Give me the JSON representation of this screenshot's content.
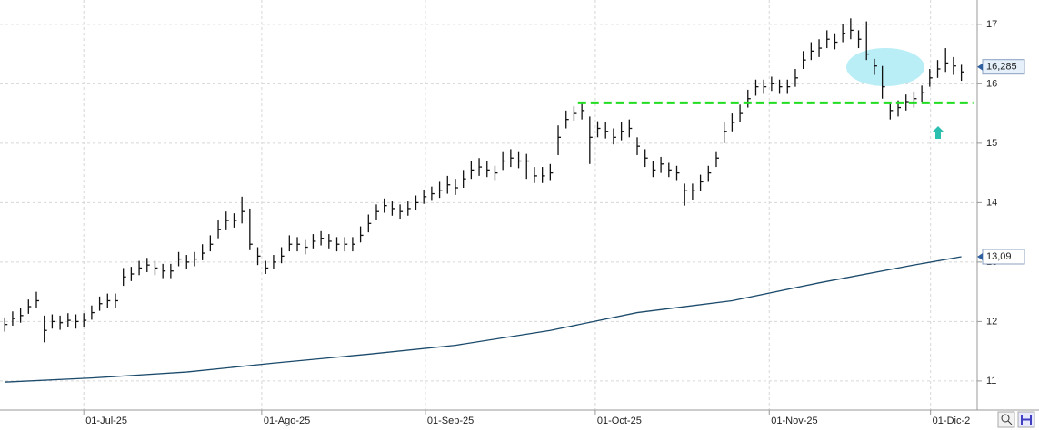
{
  "chart_data": {
    "type": "ohlc",
    "xlim": [
      -0.6,
      123
    ],
    "ylim": [
      10.51,
      17.41
    ],
    "yticks": [
      11,
      12,
      13,
      14,
      15,
      16,
      17
    ],
    "xticks": [
      {
        "value": 10,
        "label": "01-Jul-25"
      },
      {
        "value": 32.5,
        "label": "01-Ago-25"
      },
      {
        "value": 53.2,
        "label": "01-Sep-25"
      },
      {
        "value": 74.7,
        "label": "01-Oct-25"
      },
      {
        "value": 96.7,
        "label": "01-Nov-25"
      },
      {
        "value": 117.1,
        "label": "01-Dic-2"
      }
    ],
    "grid": true,
    "color": "#111111",
    "high": [
      12.07,
      12.17,
      12.22,
      12.37,
      12.5,
      12.1,
      12.12,
      12.1,
      12.14,
      12.12,
      12.14,
      12.27,
      12.42,
      12.47,
      12.47,
      12.9,
      12.92,
      13.02,
      13.07,
      13.02,
      12.97,
      12.97,
      13.17,
      13.12,
      13.17,
      13.3,
      13.45,
      13.7,
      13.85,
      13.82,
      14.1,
      13.9,
      13.25,
      13.02,
      13.12,
      13.25,
      13.45,
      13.42,
      13.37,
      13.47,
      13.52,
      13.47,
      13.42,
      13.42,
      13.42,
      13.6,
      13.8,
      13.97,
      14.07,
      14.02,
      13.97,
      14.02,
      14.12,
      14.22,
      14.27,
      14.35,
      14.45,
      14.4,
      14.55,
      14.7,
      14.75,
      14.7,
      14.62,
      14.85,
      14.9,
      14.85,
      14.82,
      14.6,
      14.6,
      14.65,
      15.3,
      15.55,
      15.62,
      15.7,
      15.45,
      15.37,
      15.35,
      15.25,
      15.35,
      15.4,
      15.1,
      14.9,
      14.7,
      14.77,
      14.67,
      14.62,
      14.32,
      14.32,
      14.47,
      14.62,
      14.85,
      15.35,
      15.5,
      15.65,
      15.9,
      16.07,
      16.07,
      16.12,
      16.07,
      16.07,
      16.25,
      16.55,
      16.7,
      16.75,
      16.9,
      16.85,
      17.0,
      17.1,
      16.9,
      17.05,
      16.42,
      16.3,
      15.7,
      15.72,
      15.82,
      15.87,
      15.97,
      16.25,
      16.4,
      16.6,
      16.45,
      16.32
    ],
    "low": [
      11.83,
      11.93,
      11.98,
      12.13,
      12.23,
      11.65,
      11.88,
      11.86,
      11.9,
      11.88,
      11.9,
      12.03,
      12.18,
      12.23,
      12.23,
      12.6,
      12.68,
      12.78,
      12.83,
      12.78,
      12.73,
      12.73,
      12.93,
      12.88,
      12.93,
      13.03,
      13.18,
      13.4,
      13.55,
      13.58,
      13.65,
      13.2,
      12.95,
      12.8,
      12.88,
      12.98,
      13.18,
      13.18,
      13.13,
      13.23,
      13.28,
      13.23,
      13.18,
      13.18,
      13.18,
      13.33,
      13.5,
      13.7,
      13.83,
      13.78,
      13.73,
      13.78,
      13.88,
      13.98,
      14.03,
      14.08,
      14.15,
      14.13,
      14.25,
      14.4,
      14.45,
      14.43,
      14.38,
      14.55,
      14.6,
      14.58,
      14.4,
      14.33,
      14.33,
      14.38,
      14.8,
      15.25,
      15.38,
      15.4,
      14.65,
      15.1,
      15.08,
      14.98,
      15.05,
      15.1,
      14.8,
      14.6,
      14.43,
      14.5,
      14.43,
      14.38,
      13.95,
      14.05,
      14.2,
      14.35,
      14.6,
      15.0,
      15.2,
      15.35,
      15.6,
      15.8,
      15.83,
      15.88,
      15.83,
      15.83,
      15.95,
      16.25,
      16.4,
      16.45,
      16.6,
      16.58,
      16.7,
      16.75,
      16.6,
      16.4,
      16.15,
      15.75,
      15.4,
      15.45,
      15.55,
      15.6,
      15.7,
      15.95,
      16.1,
      16.2,
      16.15,
      16.05
    ],
    "close": [
      11.95,
      12.05,
      12.1,
      12.25,
      12.35,
      11.85,
      12.0,
      11.98,
      12.02,
      12.0,
      12.02,
      12.15,
      12.3,
      12.35,
      12.35,
      12.75,
      12.8,
      12.9,
      12.95,
      12.9,
      12.85,
      12.85,
      13.05,
      13.0,
      13.05,
      13.15,
      13.3,
      13.55,
      13.7,
      13.7,
      13.85,
      13.3,
      13.1,
      12.9,
      13.0,
      13.1,
      13.3,
      13.3,
      13.25,
      13.35,
      13.4,
      13.35,
      13.3,
      13.3,
      13.3,
      13.45,
      13.65,
      13.85,
      13.95,
      13.9,
      13.85,
      13.9,
      14.0,
      14.1,
      14.15,
      14.2,
      14.3,
      14.25,
      14.4,
      14.55,
      14.6,
      14.55,
      14.5,
      14.7,
      14.75,
      14.7,
      14.7,
      14.45,
      14.45,
      14.5,
      15.1,
      15.4,
      15.5,
      15.55,
      15.1,
      15.25,
      15.2,
      15.1,
      15.2,
      15.25,
      14.95,
      14.75,
      14.55,
      14.65,
      14.55,
      14.5,
      14.2,
      14.2,
      14.35,
      14.5,
      14.75,
      15.2,
      15.35,
      15.5,
      15.75,
      15.95,
      15.95,
      16.0,
      15.95,
      15.95,
      16.1,
      16.4,
      16.55,
      16.6,
      16.75,
      16.7,
      16.85,
      16.9,
      16.75,
      16.5,
      16.3,
      15.95,
      15.55,
      15.6,
      15.7,
      15.75,
      15.85,
      16.1,
      16.25,
      16.35,
      16.3,
      16.2
    ],
    "moving_average": {
      "color": "#1b4a6b",
      "x": [
        0,
        11,
        23,
        34,
        46,
        57,
        69,
        80,
        92,
        103,
        115,
        121
      ],
      "values": [
        10.98,
        11.05,
        11.15,
        11.3,
        11.45,
        11.6,
        11.85,
        12.15,
        12.35,
        12.65,
        12.95,
        13.09
      ]
    },
    "level": {
      "value": 15.68,
      "from": 72.5,
      "to": 122.5,
      "color": "#22dd22"
    },
    "price_labels": [
      {
        "value": 16.285,
        "label": "16,285"
      },
      {
        "value": 13.09,
        "label": "13,09"
      }
    ]
  }
}
